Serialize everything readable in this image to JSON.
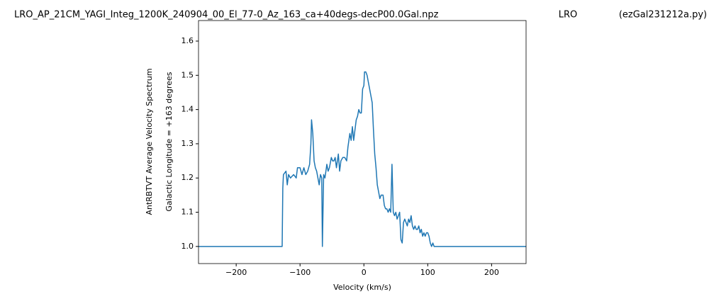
{
  "chart_data": {
    "type": "line",
    "title": "LRO_AP_21CM_YAGI_Integ_1200K_240904_00_El_77-0_Az_163_ca+40degs-decP00.0Gal.npz",
    "annotations": [
      "LRO",
      "(ezGal231212a.py)"
    ],
    "ylabel": [
      "AntRBTVT Average Velocity Spectrum",
      "Galactic Longitude = +163 degrees"
    ],
    "xlabel": "Velocity (km/s)",
    "color": "#1f77b4",
    "xlim": [
      -259,
      254
    ],
    "xticks": [
      {
        "value": -200,
        "label": "−200"
      },
      {
        "value": -100,
        "label": "−100"
      },
      0,
      100,
      200
    ],
    "ylim": [
      0.95,
      1.66
    ],
    "yticks": [
      {
        "value": 1.0,
        "label": "1.0"
      },
      1.1,
      1.2,
      1.3,
      1.4,
      1.5,
      1.6
    ],
    "x": [
      -259,
      -128,
      -127,
      -126,
      -122,
      -120,
      -118,
      -115,
      -110,
      -106,
      -104,
      -100,
      -97,
      -94,
      -91,
      -88,
      -85,
      -83,
      -82,
      -80,
      -78,
      -76,
      -74,
      -72,
      -70,
      -68,
      -66,
      -65,
      -63,
      -61,
      -58,
      -56,
      -54,
      -51,
      -49,
      -47,
      -45,
      -43,
      -40,
      -38,
      -36,
      -33,
      -30,
      -27,
      -25,
      -22,
      -20,
      -18,
      -16,
      -14,
      -12,
      -10,
      -8,
      -6,
      -4,
      -2,
      0,
      1,
      3,
      5,
      7,
      9,
      11,
      13,
      15,
      17,
      19,
      21,
      23,
      25,
      27,
      30,
      32,
      34,
      36,
      38,
      40,
      42,
      44,
      46,
      48,
      50,
      52,
      54,
      56,
      58,
      60,
      62,
      64,
      66,
      68,
      70,
      72,
      74,
      76,
      78,
      80,
      82,
      84,
      86,
      88,
      90,
      92,
      94,
      96,
      98,
      100,
      102,
      104,
      106,
      108,
      110,
      115,
      254
    ],
    "values": [
      1.0,
      1.0,
      1.17,
      1.21,
      1.22,
      1.18,
      1.21,
      1.2,
      1.21,
      1.2,
      1.23,
      1.23,
      1.21,
      1.23,
      1.21,
      1.22,
      1.24,
      1.3,
      1.37,
      1.33,
      1.25,
      1.23,
      1.22,
      1.2,
      1.18,
      1.21,
      1.2,
      1.0,
      1.21,
      1.2,
      1.24,
      1.22,
      1.23,
      1.26,
      1.25,
      1.25,
      1.26,
      1.23,
      1.27,
      1.22,
      1.25,
      1.26,
      1.26,
      1.25,
      1.29,
      1.33,
      1.31,
      1.35,
      1.31,
      1.34,
      1.37,
      1.38,
      1.4,
      1.39,
      1.39,
      1.46,
      1.47,
      1.51,
      1.51,
      1.5,
      1.48,
      1.46,
      1.44,
      1.42,
      1.34,
      1.27,
      1.23,
      1.18,
      1.16,
      1.14,
      1.15,
      1.15,
      1.12,
      1.11,
      1.11,
      1.1,
      1.11,
      1.1,
      1.24,
      1.1,
      1.09,
      1.1,
      1.08,
      1.09,
      1.1,
      1.02,
      1.01,
      1.07,
      1.08,
      1.07,
      1.06,
      1.08,
      1.07,
      1.09,
      1.06,
      1.05,
      1.06,
      1.05,
      1.05,
      1.06,
      1.04,
      1.05,
      1.03,
      1.04,
      1.03,
      1.04,
      1.04,
      1.03,
      1.01,
      1.0,
      1.01,
      1.0,
      1.0,
      1.0
    ]
  }
}
